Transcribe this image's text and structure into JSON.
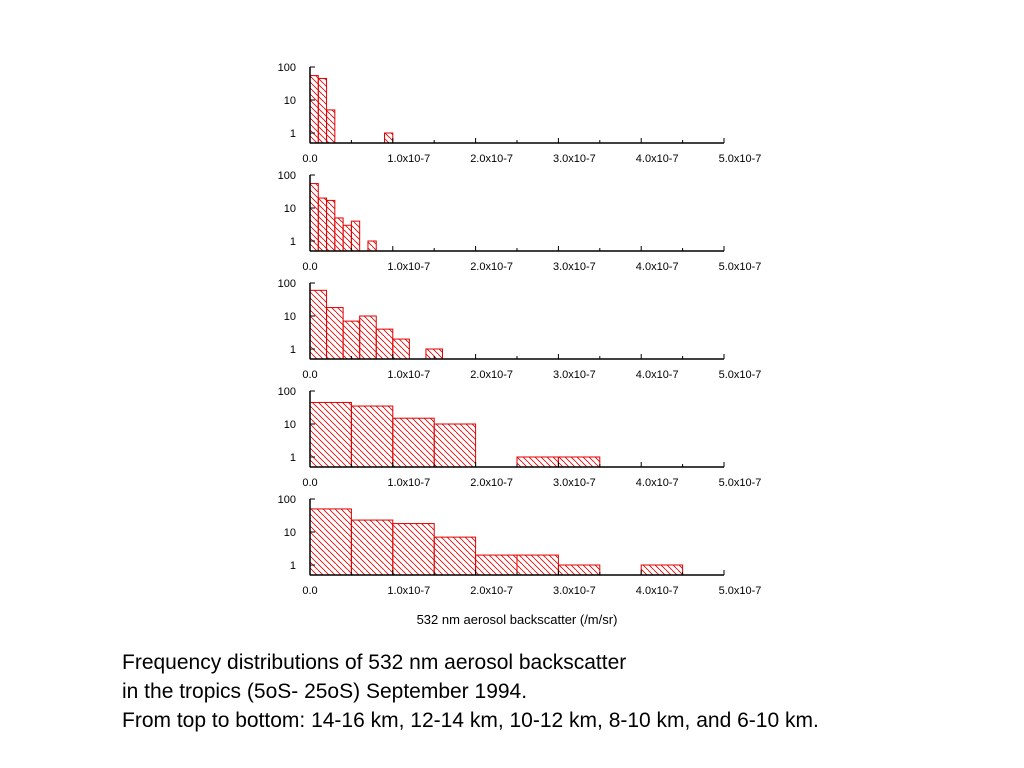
{
  "chart_data": {
    "type": "bar",
    "y_scale": "log",
    "grid": false,
    "colors": {
      "bar": "#e00000",
      "axis": "#000000"
    },
    "ylim": [
      0.5,
      100
    ],
    "y_ticks": [
      "100",
      "10",
      "1"
    ],
    "xlim": [
      0,
      5e-07
    ],
    "x_ticks": [
      "0.0",
      "1.0x10-7",
      "2.0x10-7",
      "3.0x10-7",
      "4.0x10-7",
      "5.0x10-7"
    ],
    "xlabel": "532 nm aerosol backscatter (/m/sr)",
    "panels": [
      {
        "bin_width": 1e-08,
        "bars": [
          [
            0,
            55
          ],
          [
            1e-08,
            45
          ],
          [
            2e-08,
            5
          ],
          [
            9e-08,
            1
          ]
        ]
      },
      {
        "bin_width": 1e-08,
        "bars": [
          [
            0,
            55
          ],
          [
            1e-08,
            20
          ],
          [
            2e-08,
            17
          ],
          [
            3e-08,
            5
          ],
          [
            4e-08,
            3
          ],
          [
            5e-08,
            4
          ],
          [
            7e-08,
            1
          ]
        ]
      },
      {
        "bin_width": 2e-08,
        "bars": [
          [
            0,
            60
          ],
          [
            2e-08,
            18
          ],
          [
            4e-08,
            7
          ],
          [
            6e-08,
            10
          ],
          [
            8e-08,
            4
          ],
          [
            1e-07,
            2
          ],
          [
            1.4e-07,
            1
          ]
        ]
      },
      {
        "bin_width": 5e-08,
        "bars": [
          [
            0,
            45
          ],
          [
            5e-08,
            35
          ],
          [
            1e-07,
            15
          ],
          [
            1.5e-07,
            10
          ],
          [
            2.5e-07,
            1
          ],
          [
            3e-07,
            1
          ]
        ]
      },
      {
        "bin_width": 5e-08,
        "bars": [
          [
            0,
            50
          ],
          [
            5e-08,
            23
          ],
          [
            1e-07,
            18
          ],
          [
            1.5e-07,
            7
          ],
          [
            2e-07,
            2
          ],
          [
            2.5e-07,
            2
          ],
          [
            3e-07,
            1
          ],
          [
            4e-07,
            1
          ]
        ]
      }
    ]
  },
  "caption": {
    "line1": "Frequency distributions of 532 nm aerosol backscatter",
    "line2": "in the tropics (5oS- 25oS) September 1994.",
    "line3": "From top to bottom: 14-16 km, 12-14 km, 10-12 km, 8-10 km, and 6-10 km."
  }
}
